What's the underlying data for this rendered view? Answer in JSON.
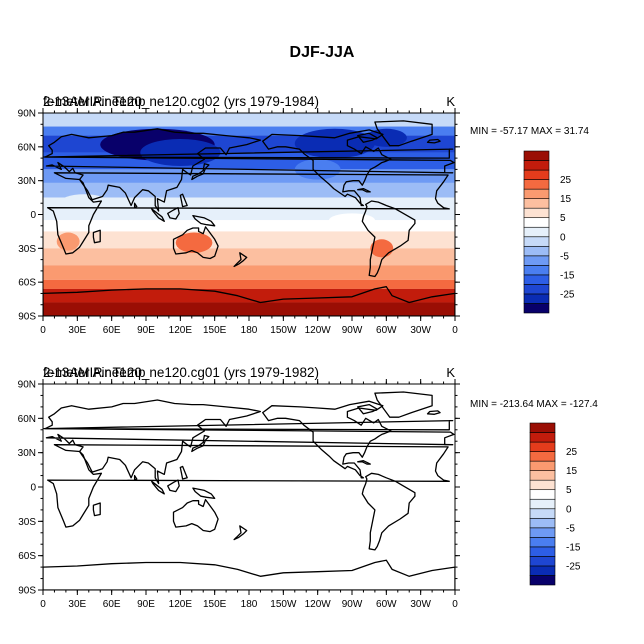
{
  "title": "DJF-JJA",
  "chart_data": [
    {
      "type": "heatmap",
      "map_projection": "cylindrical-equidistant",
      "overlaid_labels": [
        "2-meter Air Temp",
        "fe13AMIP.ne120_ne120.cg02 (yrs 1979-1984)"
      ],
      "units": "K",
      "stats": "MIN = -57.17 MAX =  31.74",
      "min": -57.17,
      "max": 31.74,
      "filled": true,
      "xticks": [
        "0",
        "30E",
        "60E",
        "90E",
        "120E",
        "150E",
        "180",
        "150W",
        "120W",
        "90W",
        "60W",
        "30W",
        "0"
      ],
      "yticks": [
        "90N",
        "60N",
        "30N",
        "0",
        "30S",
        "60S",
        "90S"
      ],
      "colorbar": {
        "levels": [
          -30,
          -25,
          -20,
          -15,
          -10,
          -5,
          -2,
          0,
          2,
          5,
          10,
          15,
          20,
          25,
          30
        ],
        "labels": [
          "25",
          "15",
          "5",
          "0",
          "-5",
          "-15",
          "-25"
        ],
        "colors": [
          "#08006a",
          "#0a2cb4",
          "#1e46d2",
          "#2d5ee6",
          "#4a7ef0",
          "#6e9af4",
          "#9cbcf6",
          "#c6daf8",
          "#e6f0fa",
          "#ffffff",
          "#fde2d2",
          "#fcbfa0",
          "#fa9a70",
          "#f46a40",
          "#e43c1c",
          "#c21c0c",
          "#9a0e04"
        ]
      }
    },
    {
      "type": "heatmap",
      "map_projection": "cylindrical-equidistant",
      "overlaid_labels": [
        "2-meter Air Temp",
        "fe13AMIP.ne120_ne120.cg01 (yrs 1979-1982)"
      ],
      "units": "K",
      "stats": "MIN = -213.64 MAX = -127.4",
      "min": -213.64,
      "max": -127.4,
      "filled": false,
      "xticks": [
        "0",
        "30E",
        "60E",
        "90E",
        "120E",
        "150E",
        "180",
        "150W",
        "120W",
        "90W",
        "60W",
        "30W",
        "0"
      ],
      "yticks": [
        "90N",
        "60N",
        "30N",
        "0",
        "30S",
        "60S",
        "90S"
      ],
      "colorbar": {
        "levels": [
          -30,
          -25,
          -20,
          -15,
          -10,
          -5,
          -2,
          0,
          2,
          5,
          10,
          15,
          20,
          25,
          30
        ],
        "labels": [
          "25",
          "15",
          "5",
          "0",
          "-5",
          "-15",
          "-25"
        ],
        "colors": [
          "#08006a",
          "#0a2cb4",
          "#1e46d2",
          "#2d5ee6",
          "#4a7ef0",
          "#6e9af4",
          "#9cbcf6",
          "#c6daf8",
          "#e6f0fa",
          "#ffffff",
          "#fde2d2",
          "#fcbfa0",
          "#fa9a70",
          "#f46a40",
          "#e43c1c",
          "#c21c0c",
          "#9a0e04"
        ]
      }
    }
  ]
}
